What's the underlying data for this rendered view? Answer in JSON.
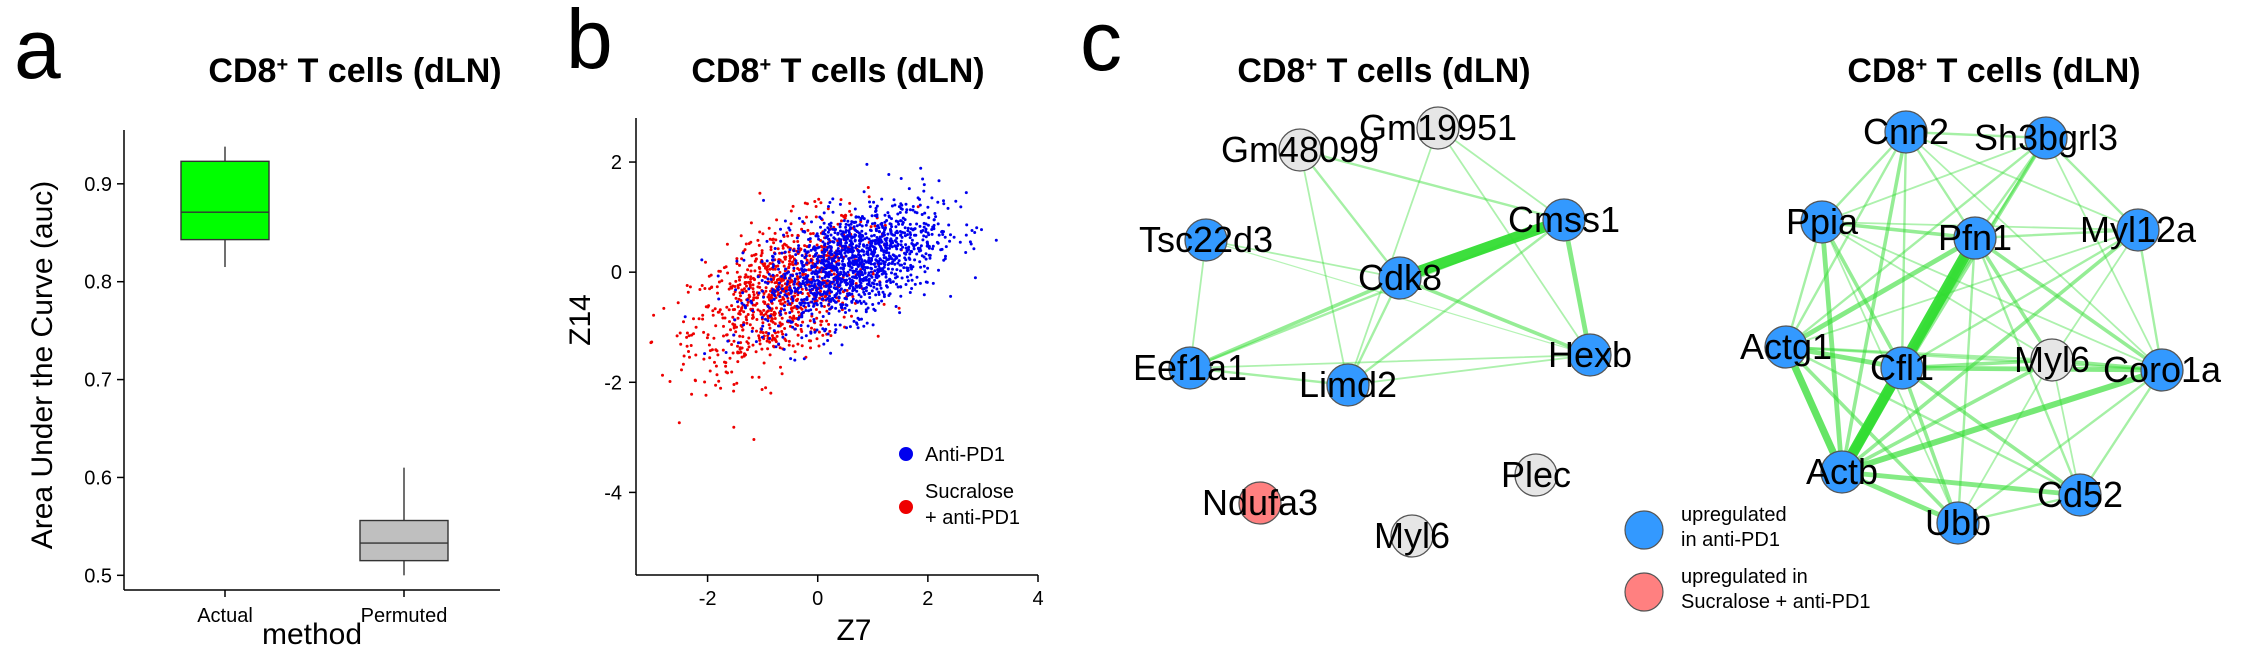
{
  "figure": {
    "panels": {
      "a": {
        "letter": "a",
        "title_main": "CD8",
        "title_sup": "+",
        "title_rest": " T cells (dLN)"
      },
      "b": {
        "letter": "b",
        "title_main": "CD8",
        "title_sup": "+",
        "title_rest": " T cells (dLN)"
      },
      "c": {
        "letter": "c",
        "left_title_main": "CD8",
        "left_title_sup": "+",
        "left_title_rest": " T cells (dLN)",
        "right_title_main": "CD8",
        "right_title_sup": "+",
        "right_title_rest": " T cells (dLN)"
      }
    }
  },
  "colors": {
    "green_box": "#00ff00",
    "grey_box": "#bfbfbf",
    "blue_points": "#0000ee",
    "red_points": "#ee0000",
    "node_blue": "#3399ff",
    "node_grey": "#e6e6e6",
    "node_red": "#ff8080",
    "edge_green": "#33dd33"
  },
  "chart_data": [
    {
      "id": "panel-a",
      "type": "box",
      "title": "CD8+ T cells (dLN)",
      "xlabel": "method",
      "ylabel": "Area Under the Curve (auc)",
      "categories": [
        "Actual",
        "Permuted"
      ],
      "ylim": [
        0.485,
        0.955
      ],
      "yticks": [
        0.5,
        0.6,
        0.7,
        0.8,
        0.9
      ],
      "ytick_labels": [
        "0.5",
        "0.6",
        "0.7",
        "0.8",
        "0.9"
      ],
      "boxes": [
        {
          "name": "Actual",
          "whisker_low": 0.815,
          "q1": 0.843,
          "median": 0.871,
          "q3": 0.923,
          "whisker_high": 0.938,
          "color": "#00ff00"
        },
        {
          "name": "Permuted",
          "whisker_low": 0.5,
          "q1": 0.515,
          "median": 0.533,
          "q3": 0.556,
          "whisker_high": 0.61,
          "color": "#bfbfbf"
        }
      ]
    },
    {
      "id": "panel-b",
      "type": "scatter",
      "title": "CD8+ T cells (dLN)",
      "xlabel": "Z7",
      "ylabel": "Z14",
      "xlim": [
        -3.3,
        4.0
      ],
      "ylim": [
        -5.5,
        2.8
      ],
      "xticks": [
        -2,
        0,
        2,
        4
      ],
      "xtick_labels": [
        "-2",
        "0",
        "2",
        "4"
      ],
      "yticks": [
        -4,
        -2,
        0,
        2
      ],
      "ytick_labels": [
        "-4",
        "-2",
        "0",
        "2"
      ],
      "series": [
        {
          "name": "Anti-PD1",
          "color": "#0000ee",
          "n_points": 1400,
          "center": [
            0.6,
            0.15
          ],
          "sd": [
            0.8,
            0.55
          ],
          "corr": 0.5
        },
        {
          "name": "Sucralose + anti-PD1",
          "color": "#ee0000",
          "n_points": 900,
          "center": [
            -0.7,
            -0.4
          ],
          "sd": [
            0.8,
            0.7
          ],
          "corr": 0.5
        }
      ],
      "legend": {
        "position": "bottom-right",
        "entries": [
          {
            "line1": "Anti-PD1",
            "line2": "",
            "color": "#0000ee"
          },
          {
            "line1": "Sucralose",
            "line2": "+ anti-PD1",
            "color": "#ee0000"
          }
        ]
      }
    },
    {
      "id": "panel-c-left",
      "type": "network",
      "title": "CD8+ T cells (dLN)",
      "nodes": [
        {
          "id": "Gm48099",
          "label": "Gm48099",
          "group": "grey"
        },
        {
          "id": "Gm19951",
          "label": "Gm19951",
          "group": "grey"
        },
        {
          "id": "Tsc22d3",
          "label": "Tsc22d3",
          "group": "blue"
        },
        {
          "id": "Cmss1",
          "label": "Cmss1",
          "group": "blue"
        },
        {
          "id": "Cdk8",
          "label": "Cdk8",
          "group": "blue"
        },
        {
          "id": "Eef1a1",
          "label": "Eef1a1",
          "group": "blue"
        },
        {
          "id": "Limd2",
          "label": "Limd2",
          "group": "blue"
        },
        {
          "id": "Hexb",
          "label": "Hexb",
          "group": "blue"
        },
        {
          "id": "Ndufa3",
          "label": "Ndufa3",
          "group": "red"
        },
        {
          "id": "Plec",
          "label": "Plec",
          "group": "grey"
        },
        {
          "id": "Myl6",
          "label": "Myl6",
          "group": "grey"
        }
      ],
      "edges": [
        {
          "source": "Cdk8",
          "target": "Cmss1",
          "weight": 9
        },
        {
          "source": "Cmss1",
          "target": "Hexb",
          "weight": 4
        },
        {
          "source": "Cdk8",
          "target": "Hexb",
          "weight": 3
        },
        {
          "source": "Cdk8",
          "target": "Eef1a1",
          "weight": 3
        },
        {
          "source": "Cdk8",
          "target": "Limd2",
          "weight": 2
        },
        {
          "source": "Cdk8",
          "target": "Gm48099",
          "weight": 2
        },
        {
          "source": "Cdk8",
          "target": "Tsc22d3",
          "weight": 1.5
        },
        {
          "source": "Cmss1",
          "target": "Gm48099",
          "weight": 2
        },
        {
          "source": "Cmss1",
          "target": "Gm19951",
          "weight": 1.5
        },
        {
          "source": "Cmss1",
          "target": "Eef1a1",
          "weight": 2
        },
        {
          "source": "Cmss1",
          "target": "Limd2",
          "weight": 2
        },
        {
          "source": "Eef1a1",
          "target": "Limd2",
          "weight": 2
        },
        {
          "source": "Eef1a1",
          "target": "Tsc22d3",
          "weight": 1.5
        },
        {
          "source": "Eef1a1",
          "target": "Hexb",
          "weight": 1.5
        },
        {
          "source": "Limd2",
          "target": "Hexb",
          "weight": 1.5
        },
        {
          "source": "Gm48099",
          "target": "Limd2",
          "weight": 1.5
        },
        {
          "source": "Gm19951",
          "target": "Limd2",
          "weight": 1.5
        },
        {
          "source": "Gm19951",
          "target": "Hexb",
          "weight": 1.5
        },
        {
          "source": "Tsc22d3",
          "target": "Hexb",
          "weight": 1
        }
      ],
      "legend": [
        {
          "line1": "upregulated",
          "line2": "in anti-PD1",
          "group": "blue"
        },
        {
          "line1": "upregulated in",
          "line2": "Sucralose + anti-PD1",
          "group": "red"
        }
      ]
    },
    {
      "id": "panel-c-right",
      "type": "network",
      "title": "CD8+ T cells (dLN)",
      "nodes": [
        {
          "id": "Cnn2",
          "label": "Cnn2",
          "group": "blue"
        },
        {
          "id": "Sh3bgrl3",
          "label": "Sh3bgrl3",
          "group": "blue"
        },
        {
          "id": "Ppia",
          "label": "Ppia",
          "group": "blue"
        },
        {
          "id": "Pfn1",
          "label": "Pfn1",
          "group": "blue"
        },
        {
          "id": "Myl12a",
          "label": "Myl12a",
          "group": "blue"
        },
        {
          "id": "Actg1",
          "label": "Actg1",
          "group": "blue"
        },
        {
          "id": "Cfl1",
          "label": "Cfl1",
          "group": "blue"
        },
        {
          "id": "Myl6",
          "label": "Myl6",
          "group": "grey"
        },
        {
          "id": "Coro1a",
          "label": "Coro1a",
          "group": "blue"
        },
        {
          "id": "Actb",
          "label": "Actb",
          "group": "blue"
        },
        {
          "id": "Cd52",
          "label": "Cd52",
          "group": "blue"
        },
        {
          "id": "Ubb",
          "label": "Ubb",
          "group": "blue"
        }
      ],
      "edges": [
        {
          "source": "Pfn1",
          "target": "Actb",
          "weight": 9
        },
        {
          "source": "Cfl1",
          "target": "Actb",
          "weight": 7
        },
        {
          "source": "Actg1",
          "target": "Actb",
          "weight": 6
        },
        {
          "source": "Pfn1",
          "target": "Cfl1",
          "weight": 5
        },
        {
          "source": "Actb",
          "target": "Coro1a",
          "weight": 5
        },
        {
          "source": "Ppia",
          "target": "Actb",
          "weight": 4
        },
        {
          "source": "Actb",
          "target": "Cd52",
          "weight": 4
        },
        {
          "source": "Actb",
          "target": "Ubb",
          "weight": 4
        },
        {
          "source": "Pfn1",
          "target": "Actg1",
          "weight": 4
        },
        {
          "source": "Actg1",
          "target": "Cfl1",
          "weight": 4
        },
        {
          "source": "Cfl1",
          "target": "Coro1a",
          "weight": 4
        },
        {
          "source": "Actb",
          "target": "Myl6",
          "weight": 3
        },
        {
          "source": "Actb",
          "target": "Sh3bgrl3",
          "weight": 3
        },
        {
          "source": "Actb",
          "target": "Cnn2",
          "weight": 3
        },
        {
          "source": "Actb",
          "target": "Myl12a",
          "weight": 3
        },
        {
          "source": "Ppia",
          "target": "Pfn1",
          "weight": 3
        },
        {
          "source": "Ppia",
          "target": "Cfl1",
          "weight": 3
        },
        {
          "source": "Pfn1",
          "target": "Coro1a",
          "weight": 3
        },
        {
          "source": "Pfn1",
          "target": "Myl6",
          "weight": 3
        },
        {
          "source": "Cfl1",
          "target": "Myl6",
          "weight": 3
        },
        {
          "source": "Myl6",
          "target": "Coro1a",
          "weight": 3
        },
        {
          "source": "Actg1",
          "target": "Ubb",
          "weight": 3
        },
        {
          "source": "Cfl1",
          "target": "Ubb",
          "weight": 3
        },
        {
          "source": "Cfl1",
          "target": "Cd52",
          "weight": 3
        },
        {
          "source": "Actg1",
          "target": "Coro1a",
          "weight": 2
        },
        {
          "source": "Pfn1",
          "target": "Cnn2",
          "weight": 2
        },
        {
          "source": "Pfn1",
          "target": "Sh3bgrl3",
          "weight": 2
        },
        {
          "source": "Pfn1",
          "target": "Myl12a",
          "weight": 2
        },
        {
          "source": "Pfn1",
          "target": "Ubb",
          "weight": 2
        },
        {
          "source": "Pfn1",
          "target": "Cd52",
          "weight": 2
        },
        {
          "source": "Cnn2",
          "target": "Sh3bgrl3",
          "weight": 2
        },
        {
          "source": "Cnn2",
          "target": "Ppia",
          "weight": 2
        },
        {
          "source": "Cnn2",
          "target": "Cfl1",
          "weight": 2
        },
        {
          "source": "Cnn2",
          "target": "Actg1",
          "weight": 2
        },
        {
          "source": "Cnn2",
          "target": "Myl12a",
          "weight": 1.5
        },
        {
          "source": "Cnn2",
          "target": "Coro1a",
          "weight": 1.5
        },
        {
          "source": "Sh3bgrl3",
          "target": "Myl12a",
          "weight": 2
        },
        {
          "source": "Sh3bgrl3",
          "target": "Ppia",
          "weight": 1.5
        },
        {
          "source": "Sh3bgrl3",
          "target": "Cfl1",
          "weight": 2
        },
        {
          "source": "Sh3bgrl3",
          "target": "Actg1",
          "weight": 2
        },
        {
          "source": "Sh3bgrl3",
          "target": "Coro1a",
          "weight": 1.5
        },
        {
          "source": "Ppia",
          "target": "Actg1",
          "weight": 2
        },
        {
          "source": "Ppia",
          "target": "Myl12a",
          "weight": 1.5
        },
        {
          "source": "Ppia",
          "target": "Coro1a",
          "weight": 1.5
        },
        {
          "source": "Ppia",
          "target": "Myl6",
          "weight": 1.5
        },
        {
          "source": "Ppia",
          "target": "Ubb",
          "weight": 1.5
        },
        {
          "source": "Myl12a",
          "target": "Coro1a",
          "weight": 2
        },
        {
          "source": "Myl12a",
          "target": "Cfl1",
          "weight": 2
        },
        {
          "source": "Myl12a",
          "target": "Actg1",
          "weight": 1.5
        },
        {
          "source": "Myl12a",
          "target": "Myl6",
          "weight": 1.5
        },
        {
          "source": "Actg1",
          "target": "Myl6",
          "weight": 2
        },
        {
          "source": "Actg1",
          "target": "Cd52",
          "weight": 2
        },
        {
          "source": "Coro1a",
          "target": "Cd52",
          "weight": 2
        },
        {
          "source": "Coro1a",
          "target": "Ubb",
          "weight": 2
        },
        {
          "source": "Cd52",
          "target": "Ubb",
          "weight": 2
        },
        {
          "source": "Myl6",
          "target": "Cd52",
          "weight": 1.5
        },
        {
          "source": "Myl6",
          "target": "Ubb",
          "weight": 1.5
        }
      ]
    }
  ]
}
